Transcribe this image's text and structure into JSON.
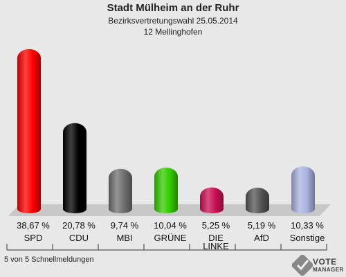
{
  "header": {
    "title": "Stadt Mülheim an der Ruhr",
    "subtitle": "Bezirksvertretungswahl 25.05.2014",
    "district": "12 Mellinghofen"
  },
  "footer": {
    "text": "5 von 5 Schnellmeldungen"
  },
  "logo": {
    "line1": "VOTE",
    "line2": "MANAGER"
  },
  "chart_data": {
    "type": "bar",
    "title": "Stadt Mülheim an der Ruhr",
    "categories": [
      "SPD",
      "CDU",
      "MBI",
      "GRÜNE",
      "DIE LINKE",
      "AfD",
      "Sonstige"
    ],
    "category_lines": [
      [
        "SPD"
      ],
      [
        "CDU"
      ],
      [
        "MBI"
      ],
      [
        "GRÜNE"
      ],
      [
        "DIE",
        "LINKE"
      ],
      [
        "AfD"
      ],
      [
        "Sonstige"
      ]
    ],
    "values": [
      38.67,
      20.78,
      9.74,
      10.04,
      5.25,
      5.19,
      10.33
    ],
    "value_labels": [
      "38,67 %",
      "20,78 %",
      "9,74 %",
      "10,04 %",
      "5,25 %",
      "5,19 %",
      "10,33 %"
    ],
    "colors": [
      "#ff0000",
      "#000000",
      "#707070",
      "#33cc00",
      "#cc1155",
      "#555555",
      "#aab4e0"
    ],
    "ylim": [
      0,
      40
    ],
    "grid": false,
    "legend": "none"
  }
}
